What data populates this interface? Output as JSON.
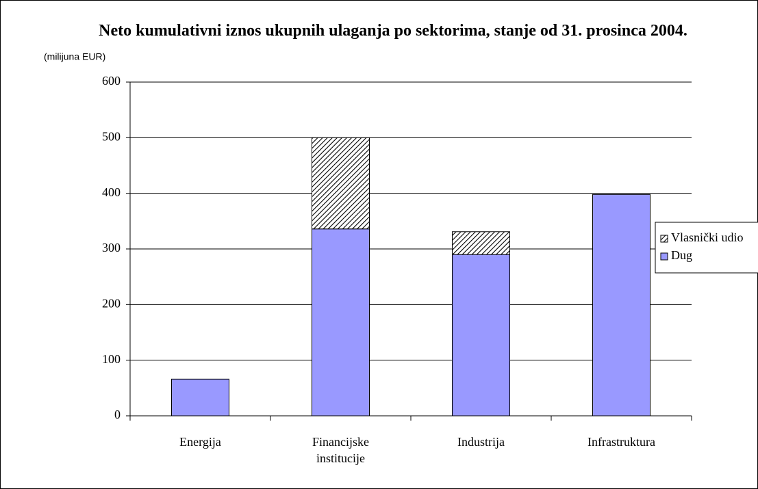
{
  "chart_data": {
    "type": "bar",
    "stacked": true,
    "title": "Neto kumulativni iznos ukupnih ulaganja po sektorima, stanje od 31. prosinca 2004.",
    "y_label": "(milijuna EUR)",
    "categories": [
      "Energija",
      "Financijske institucije",
      "Industrija",
      "Infrastruktura"
    ],
    "series": [
      {
        "name": "Dug",
        "color": "#9999ff",
        "values": [
          66,
          336,
          290,
          398
        ]
      },
      {
        "name": "Vlasnički udio",
        "color": "#ffffff",
        "pattern": "hatch",
        "values": [
          0,
          164,
          41,
          0
        ]
      }
    ],
    "ylim": [
      0,
      600
    ],
    "yticks": [
      0,
      100,
      200,
      300,
      400,
      500,
      600
    ],
    "grid": true,
    "legend": "right"
  }
}
